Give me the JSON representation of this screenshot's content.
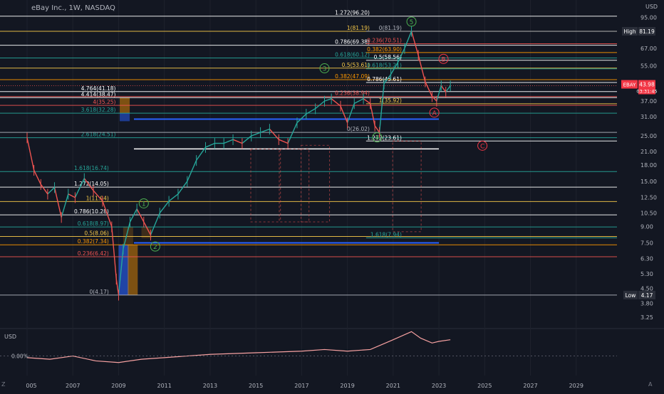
{
  "header": {
    "symbol_title": "eBay Inc., 1W, NASDAQ",
    "currency_label": "USD",
    "sub_currency_label": "USD",
    "sub_zero_label": "0.00%",
    "footer_left": "Z",
    "footer_right": "A"
  },
  "badges": {
    "high_label": "High",
    "high_value": "81.19",
    "low_label": "Low",
    "low_value": "4.17",
    "last_symbol": "EBAY",
    "last_price": "43.98",
    "countdown": "03:31:45"
  },
  "colors": {
    "background": "#131722",
    "up": "#26a69a",
    "down": "#ef5350",
    "fib_white": "#ffffff",
    "fib_yellow": "#f7c948",
    "fib_teal": "#26a69a",
    "fib_red": "#ef5350",
    "fib_orange": "#ff9800",
    "fib_blue": "#2962ff",
    "wave_green": "#4caf50",
    "wave_red": "#f23645"
  },
  "chart_data": {
    "type": "line",
    "scale": "log",
    "ylim": [
      3.0,
      110
    ],
    "xlim": [
      2005.0,
      2030.0
    ],
    "y_ticks": [
      "95.00",
      "81.19",
      "67.00",
      "55.00",
      "43.98",
      "37.00",
      "31.00",
      "25.00",
      "21.00",
      "18.00",
      "15.00",
      "12.50",
      "10.50",
      "9.00",
      "7.50",
      "6.30",
      "5.30",
      "4.50",
      "4.17",
      "3.80",
      "3.25"
    ],
    "x_ticks": [
      "005",
      "2007",
      "2009",
      "2011",
      "2013",
      "2015",
      "2017",
      "2019",
      "2021",
      "2023",
      "2025",
      "2027",
      "2029"
    ],
    "price_series": {
      "name": "",
      "points": [
        [
          2005.0,
          24.5
        ],
        [
          2005.3,
          17
        ],
        [
          2005.6,
          14.5
        ],
        [
          2005.9,
          13
        ],
        [
          2006.2,
          14
        ],
        [
          2006.5,
          10
        ],
        [
          2006.8,
          13
        ],
        [
          2007.1,
          12.5
        ],
        [
          2007.5,
          15.5
        ],
        [
          2007.9,
          13.5
        ],
        [
          2008.3,
          12
        ],
        [
          2008.7,
          9
        ],
        [
          2008.9,
          5
        ],
        [
          2009.0,
          4.17
        ],
        [
          2009.2,
          7
        ],
        [
          2009.5,
          9.5
        ],
        [
          2009.8,
          11
        ],
        [
          2010.1,
          9.5
        ],
        [
          2010.4,
          8.2
        ],
        [
          2010.8,
          10.5
        ],
        [
          2011.2,
          12
        ],
        [
          2011.6,
          13
        ],
        [
          2012.0,
          15
        ],
        [
          2012.4,
          19
        ],
        [
          2012.8,
          22
        ],
        [
          2013.2,
          23
        ],
        [
          2013.6,
          23
        ],
        [
          2014.0,
          24
        ],
        [
          2014.4,
          23
        ],
        [
          2014.8,
          25
        ],
        [
          2015.2,
          26
        ],
        [
          2015.6,
          27
        ],
        [
          2016.0,
          24
        ],
        [
          2016.4,
          23
        ],
        [
          2016.8,
          29
        ],
        [
          2017.2,
          32
        ],
        [
          2017.6,
          34
        ],
        [
          2018.0,
          37
        ],
        [
          2018.3,
          38
        ],
        [
          2018.7,
          35
        ],
        [
          2019.0,
          29
        ],
        [
          2019.3,
          36
        ],
        [
          2019.7,
          38
        ],
        [
          2020.0,
          36
        ],
        [
          2020.2,
          28
        ],
        [
          2020.4,
          26.02
        ],
        [
          2020.6,
          45
        ],
        [
          2020.9,
          50
        ],
        [
          2021.2,
          57
        ],
        [
          2021.5,
          67
        ],
        [
          2021.8,
          81.19
        ],
        [
          2022.1,
          62
        ],
        [
          2022.4,
          46
        ],
        [
          2022.7,
          39
        ],
        [
          2022.9,
          37
        ],
        [
          2023.1,
          44
        ],
        [
          2023.3,
          41
        ],
        [
          2023.5,
          43.98
        ]
      ]
    },
    "subpane_series": {
      "name": "",
      "points": [
        [
          2005.0,
          -1
        ],
        [
          2006,
          -2
        ],
        [
          2007,
          0
        ],
        [
          2008,
          -3
        ],
        [
          2009,
          -4
        ],
        [
          2010,
          -2
        ],
        [
          2011,
          -1
        ],
        [
          2012,
          0
        ],
        [
          2013,
          1
        ],
        [
          2014,
          1.5
        ],
        [
          2015,
          2
        ],
        [
          2016,
          2.5
        ],
        [
          2017,
          3
        ],
        [
          2018,
          4
        ],
        [
          2019,
          3
        ],
        [
          2020,
          4
        ],
        [
          2020.5,
          7
        ],
        [
          2021,
          10
        ],
        [
          2021.8,
          15
        ],
        [
          2022.2,
          11
        ],
        [
          2022.7,
          8
        ],
        [
          2023,
          9
        ],
        [
          2023.5,
          10
        ]
      ]
    },
    "fib_sets": [
      {
        "name": "fib-set-1",
        "levels": [
          {
            "label": "1.272(14.05)",
            "value": 14.05,
            "color": "#ffffff"
          },
          {
            "label": "1(11.94)",
            "value": 11.94,
            "color": "#f7c948"
          },
          {
            "label": "0.786(10.28)",
            "value": 10.28,
            "color": "#ffffff"
          },
          {
            "label": "0.618(8.97)",
            "value": 8.97,
            "color": "#26a69a"
          },
          {
            "label": "0.5(8.06)",
            "value": 8.06,
            "color": "#f7c948"
          },
          {
            "label": "0.382(7.34)",
            "value": 7.34,
            "color": "#ff9800"
          },
          {
            "label": "0.236(6.42)",
            "value": 6.42,
            "color": "#ef5350"
          },
          {
            "label": "0(4.17)",
            "value": 4.17,
            "color": "#b2b5be"
          },
          {
            "label": "1.618(16.74)",
            "value": 16.74,
            "color": "#26a69a"
          }
        ]
      },
      {
        "name": "fib-set-2",
        "levels": [
          {
            "label": "4.764(41.18)",
            "value": 41.18,
            "color": "#ffffff"
          },
          {
            "label": "4.414(38.47)",
            "value": 38.47,
            "color": "#ffffff"
          },
          {
            "label": "4(35.25)",
            "value": 35.25,
            "color": "#ef5350"
          },
          {
            "label": "3.618(32.28)",
            "value": 32.28,
            "color": "#26a69a"
          },
          {
            "label": "2.618(24.51)",
            "value": 24.51,
            "color": "#26a69a"
          }
        ]
      },
      {
        "name": "fib-set-3",
        "levels": [
          {
            "label": "1.272(96.20)",
            "value": 96.2,
            "color": "#ffffff"
          },
          {
            "label": "1(81.19)",
            "value": 81.19,
            "color": "#f7c948"
          },
          {
            "label": "0.786(69.38)",
            "value": 69.38,
            "color": "#ffffff"
          },
          {
            "label": "0.618(60.12)",
            "value": 60.12,
            "color": "#26a69a"
          },
          {
            "label": "0.5(53.61)",
            "value": 53.61,
            "color": "#f7c948"
          },
          {
            "label": "0.382(47.09)",
            "value": 47.09,
            "color": "#ff9800"
          },
          {
            "label": "0.236(38.94)",
            "value": 38.94,
            "color": "#ef5350"
          },
          {
            "label": "0(26.02)",
            "value": 26.02,
            "color": "#b2b5be"
          }
        ]
      },
      {
        "name": "fib-set-4",
        "levels": [
          {
            "label": "0(81.19)",
            "value": 81.19,
            "color": "#b2b5be"
          },
          {
            "label": "0.236(70.51)",
            "value": 70.51,
            "color": "#ef5350"
          },
          {
            "label": "0.382(63.90)",
            "value": 63.9,
            "color": "#ff9800"
          },
          {
            "label": "0.5(58.56)",
            "value": 58.56,
            "color": "#ffffff"
          },
          {
            "label": "0.618(53.21)",
            "value": 53.21,
            "color": "#26a69a"
          },
          {
            "label": "0.786(45.61)",
            "value": 45.61,
            "color": "#ffffff"
          },
          {
            "label": "1(35.92)",
            "value": 35.92,
            "color": "#f7c948"
          },
          {
            "label": "1.272(23.61)",
            "value": 23.61,
            "color": "#ffffff"
          },
          {
            "label": "1.618(7.94)",
            "value": 7.94,
            "color": "#26a69a"
          }
        ]
      }
    ],
    "waves": [
      {
        "label": "1",
        "x": 2010.1,
        "y": 11.7,
        "color": "#4caf50"
      },
      {
        "label": "2",
        "x": 2010.6,
        "y": 7.2,
        "color": "#4caf50"
      },
      {
        "label": "3",
        "x": 2018.0,
        "y": 53.5,
        "color": "#4caf50"
      },
      {
        "label": "4",
        "x": 2020.3,
        "y": 24.6,
        "color": "#4caf50"
      },
      {
        "label": "5",
        "x": 2021.8,
        "y": 90.5,
        "color": "#4caf50"
      },
      {
        "label": "A",
        "x": 2022.8,
        "y": 32.5,
        "color": "#f23645"
      },
      {
        "label": "B",
        "x": 2023.2,
        "y": 59.5,
        "color": "#f23645"
      },
      {
        "label": "C",
        "x": 2024.9,
        "y": 22.4,
        "color": "#f23645"
      }
    ]
  }
}
